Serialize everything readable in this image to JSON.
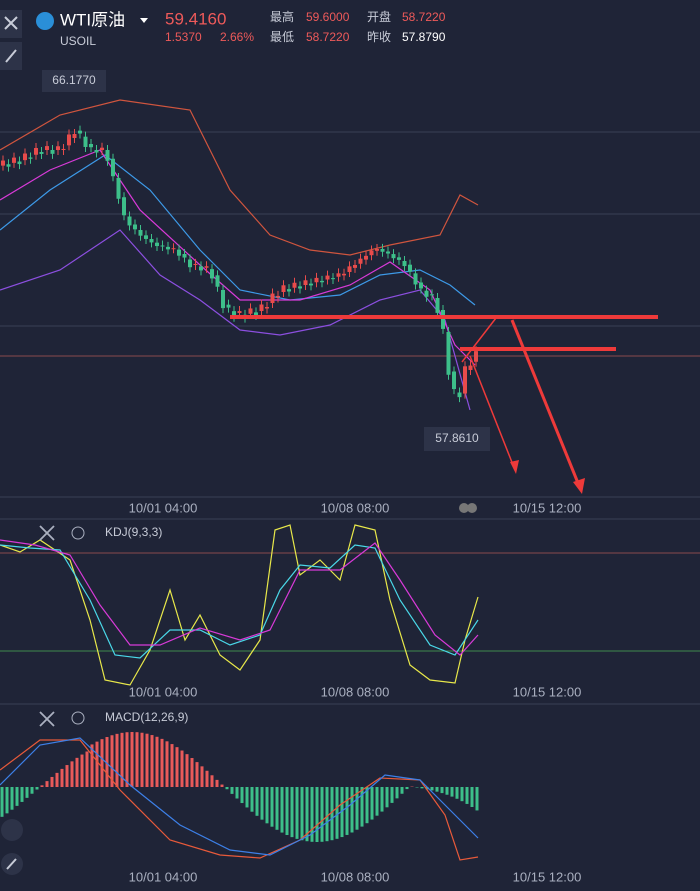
{
  "header": {
    "symbol": "WTI原油",
    "code": "USOIL",
    "price": "59.4160",
    "change": "1.5370",
    "change_pct": "2.66%",
    "stats": [
      {
        "label": "最高",
        "value": "59.6000"
      },
      {
        "label": "开盘",
        "value": "58.7220"
      },
      {
        "label": "最低",
        "value": "58.7220"
      },
      {
        "label": "昨收",
        "value": "57.8790"
      }
    ]
  },
  "main_chart": {
    "high_label": "66.1770",
    "low_label": "57.8610",
    "time_labels": [
      "10/01 04:00",
      "10/08 08:00",
      "10/15 12:00"
    ]
  },
  "kdj": {
    "label": "KDJ(9,3,3)",
    "time_labels": [
      "10/01 04:00",
      "10/08 08:00",
      "10/15 12:00"
    ]
  },
  "macd": {
    "label": "MACD(12,26,9)",
    "time_labels": [
      "10/01 04:00",
      "10/08 08:00",
      "10/15 12:00"
    ]
  }
}
